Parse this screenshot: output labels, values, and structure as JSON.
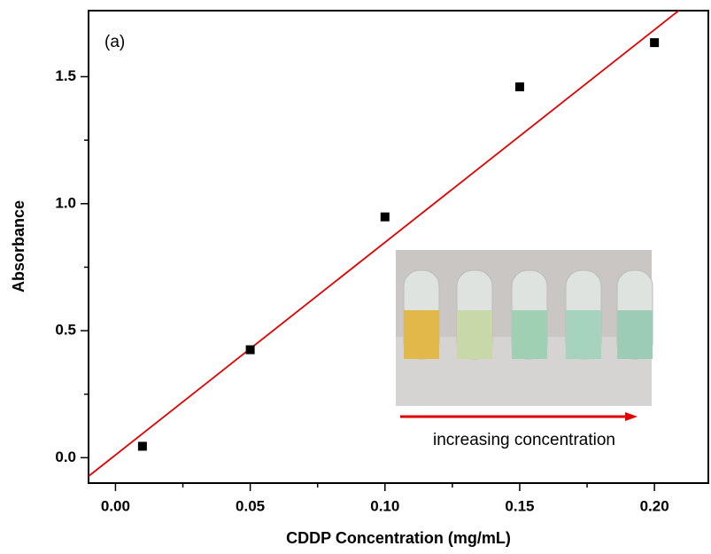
{
  "chart_data": {
    "type": "scatter",
    "x_label": "CDDP Concentration (mg/mL)",
    "y_label": "Absorbance",
    "annotations": [
      "(a)",
      "increasing concentration"
    ],
    "series": [
      {
        "name": "Absorbance",
        "color": "#000000",
        "x": [
          0.01,
          0.05,
          0.1,
          0.15,
          0.2
        ],
        "values": [
          0.045,
          0.425,
          0.948,
          1.46,
          1.634
        ]
      }
    ],
    "fit_line": {
      "color": "#e00000",
      "x": [
        -0.01,
        0.209
      ],
      "y": [
        -0.073,
        1.76
      ]
    },
    "xlim": [
      -0.01,
      0.22
    ],
    "ylim": [
      -0.1,
      1.76
    ],
    "xticks": [
      {
        "value": 0,
        "label": "0.00"
      },
      0.05,
      {
        "value": 0.1,
        "label": "0.10"
      },
      0.15,
      {
        "value": 0.2,
        "label": "0.20"
      }
    ],
    "yticks": [
      {
        "value": 0,
        "label": "0.0"
      },
      0.5,
      {
        "value": 1,
        "label": "1.0"
      },
      1.5
    ],
    "xminorticks": [
      0.025,
      0.075,
      0.125,
      0.175
    ],
    "yminorticks": [
      0.25,
      0.75,
      1.25
    ]
  }
}
